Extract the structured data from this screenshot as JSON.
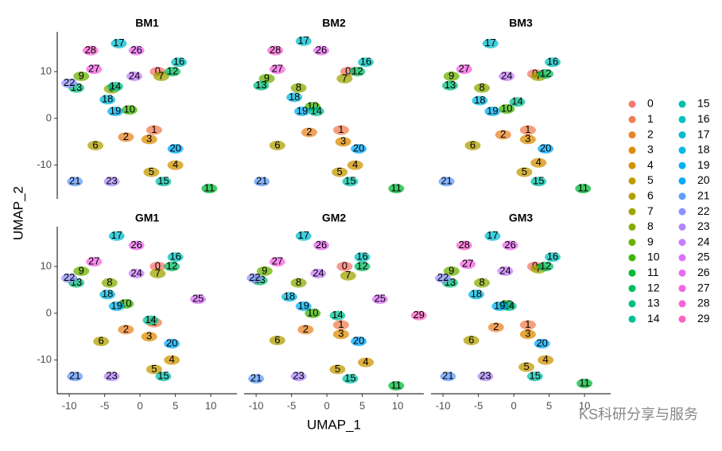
{
  "chart_data": {
    "type": "scatter",
    "x_label": "UMAP_1",
    "y_label": "UMAP_2",
    "xlim": [
      -11.7,
      13.7
    ],
    "ylim": [
      -17.2,
      18.5
    ],
    "xticks": [
      -10,
      -5,
      0,
      5,
      10
    ],
    "yticks": [
      -10,
      0,
      10
    ],
    "clusters": [
      "0",
      "1",
      "2",
      "3",
      "4",
      "5",
      "6",
      "7",
      "8",
      "9",
      "10",
      "11",
      "12",
      "13",
      "14",
      "15",
      "16",
      "17",
      "18",
      "19",
      "20",
      "21",
      "22",
      "23",
      "24",
      "25",
      "26",
      "27",
      "28",
      "29"
    ],
    "colors": [
      "#F8766D",
      "#F17D50",
      "#E88526",
      "#DE8C00",
      "#D19300",
      "#C29A00",
      "#B2A000",
      "#9FA600",
      "#88AC00",
      "#6BB100",
      "#3DB600",
      "#00BA38",
      "#00BD5C",
      "#00C078",
      "#00C191",
      "#00C1A7",
      "#00C0BC",
      "#00BDD0",
      "#00B8E2",
      "#00B1F2",
      "#00A9FF",
      "#619CFF",
      "#8F91FF",
      "#AF87FF",
      "#C77CFF",
      "#DB72FB",
      "#EA6AF1",
      "#F564E3",
      "#FC61D2",
      "#FF61C3"
    ],
    "panels": [
      {
        "title": "BM1",
        "cluster": [
          0,
          1,
          2,
          3,
          4,
          5,
          6,
          7,
          8,
          9,
          10,
          11,
          12,
          13,
          14,
          15,
          16,
          17,
          18,
          19,
          20,
          21,
          22,
          23,
          24,
          26,
          27,
          28
        ],
        "x": [
          2.5,
          2,
          -2,
          1.3,
          5,
          1.6,
          -6.3,
          3,
          -4,
          -8.3,
          -1.5,
          9.8,
          4.6,
          -9,
          -3.5,
          3.3,
          5.5,
          -3,
          -4.6,
          -3.5,
          5,
          -9.2,
          -10,
          -4,
          -0.8,
          -0.5,
          -6.5,
          -7
        ],
        "y": [
          10,
          -2.5,
          -4,
          -4.5,
          -10,
          -11.5,
          -5.8,
          9,
          6.3,
          9,
          1.8,
          -15,
          10,
          6.5,
          6.8,
          -13.5,
          12,
          16,
          4,
          1.5,
          -6.5,
          -13.5,
          7.5,
          -13.5,
          9,
          14.5,
          10.5,
          14.5
        ]
      },
      {
        "title": "BM2",
        "cluster": [
          0,
          1,
          2,
          3,
          4,
          5,
          6,
          7,
          8,
          9,
          10,
          11,
          12,
          13,
          14,
          15,
          16,
          17,
          18,
          19,
          20,
          21,
          26,
          27,
          28
        ],
        "x": [
          3,
          2,
          -2.5,
          2.3,
          4,
          1.8,
          -7,
          2.5,
          -4,
          -8.5,
          -2,
          9.8,
          4.3,
          -9.3,
          -1.5,
          3.3,
          5.5,
          -3.3,
          -4.6,
          -3.5,
          4.5,
          -9.2,
          -0.8,
          -7,
          -7.3
        ],
        "y": [
          10,
          -2.5,
          -3,
          -5,
          -10,
          -11.5,
          -5.8,
          8.5,
          6.5,
          8.5,
          2.5,
          -15,
          10,
          7,
          1.5,
          -13.5,
          12,
          16.5,
          4.5,
          1.5,
          -6.5,
          -13.5,
          14.5,
          10.5,
          14.5
        ]
      },
      {
        "title": "BM3",
        "cluster": [
          0,
          1,
          2,
          3,
          4,
          5,
          6,
          7,
          8,
          9,
          10,
          11,
          12,
          13,
          14,
          15,
          16,
          17,
          18,
          19,
          20,
          21,
          24,
          27
        ],
        "x": [
          3,
          2,
          -1.5,
          2,
          3.5,
          1.5,
          -5.8,
          3.5,
          -4.5,
          -8.8,
          -1,
          9.8,
          4.5,
          -9,
          0.5,
          3.5,
          5.5,
          -3.3,
          -4.8,
          -3,
          4.5,
          -9.5,
          -1,
          -7
        ],
        "y": [
          9.5,
          -2.5,
          -3.5,
          -4.5,
          -9.5,
          -11.5,
          -5.8,
          9,
          6.5,
          9,
          2,
          -15,
          9.5,
          7,
          3.5,
          -13.5,
          12,
          16,
          3.8,
          1.5,
          -6.5,
          -13.5,
          9,
          10.5
        ]
      },
      {
        "title": "GM1",
        "cluster": [
          0,
          1,
          2,
          3,
          4,
          5,
          6,
          7,
          8,
          9,
          10,
          12,
          13,
          14,
          15,
          16,
          17,
          18,
          19,
          20,
          21,
          22,
          23,
          24,
          25,
          26,
          27
        ],
        "x": [
          2.5,
          2,
          -2,
          1.3,
          4.5,
          2,
          -5.5,
          2.5,
          -4.3,
          -8.3,
          -2,
          4.5,
          -9,
          1.5,
          3.3,
          5,
          -3.3,
          -4.6,
          -3.3,
          4.5,
          -9.2,
          -10,
          -4,
          -0.5,
          8.2,
          -0.5,
          -6.5
        ],
        "y": [
          10,
          -2,
          -3.5,
          -5,
          -10,
          -12,
          -6,
          8.5,
          6.5,
          9,
          2,
          10,
          6.5,
          -1.5,
          -13.5,
          12,
          16.5,
          4,
          1.5,
          -6.5,
          -13.5,
          7.5,
          -13.5,
          8.5,
          3,
          14.5,
          11
        ]
      },
      {
        "title": "GM2",
        "cluster": [
          0,
          1,
          2,
          3,
          4,
          5,
          6,
          7,
          8,
          9,
          10,
          11,
          12,
          13,
          14,
          15,
          16,
          17,
          18,
          19,
          20,
          21,
          22,
          23,
          24,
          25,
          26,
          27,
          29
        ],
        "x": [
          2.5,
          2,
          -3,
          2,
          5.5,
          1.5,
          -7,
          3,
          -4,
          -8.8,
          -2,
          9.8,
          5,
          -9.5,
          1.5,
          3.3,
          5,
          -3.3,
          -5.3,
          -3.3,
          4.5,
          -10,
          -10.2,
          -4,
          -1.2,
          7.5,
          -0.8,
          -7,
          13
        ],
        "y": [
          10,
          -2.5,
          -3.5,
          -4.5,
          -10.5,
          -12,
          -5.8,
          8,
          6.5,
          9,
          0,
          -15.5,
          10,
          7,
          -0.5,
          -14,
          12,
          16.5,
          3.5,
          1.5,
          -6,
          -14,
          7.5,
          -13.5,
          8.5,
          3,
          14.5,
          11,
          -0.5
        ]
      },
      {
        "title": "GM3",
        "cluster": [
          0,
          1,
          2,
          3,
          4,
          5,
          6,
          7,
          8,
          9,
          10,
          11,
          12,
          13,
          14,
          15,
          16,
          17,
          18,
          19,
          20,
          21,
          22,
          23,
          24,
          26,
          27,
          28
        ],
        "x": [
          3,
          2,
          -2.5,
          2,
          4.5,
          1.8,
          -6,
          3.5,
          -4.5,
          -8.8,
          -1,
          10,
          4.5,
          -9,
          -0.7,
          3,
          5.5,
          -3,
          -5.3,
          -2,
          4,
          -9.3,
          -10,
          -4,
          -1.2,
          -0.5,
          -6.5,
          -7
        ],
        "y": [
          10,
          -2.5,
          -3,
          -4.5,
          -10,
          -11.5,
          -5.8,
          9.5,
          6.5,
          9,
          1.8,
          -15,
          10,
          6.5,
          1.5,
          -13.5,
          12,
          16.5,
          4,
          1.5,
          -6.5,
          -13.5,
          7.5,
          -13.5,
          9,
          14.5,
          10.5,
          14.5
        ]
      }
    ]
  },
  "watermark": "KS科研分享与服务"
}
